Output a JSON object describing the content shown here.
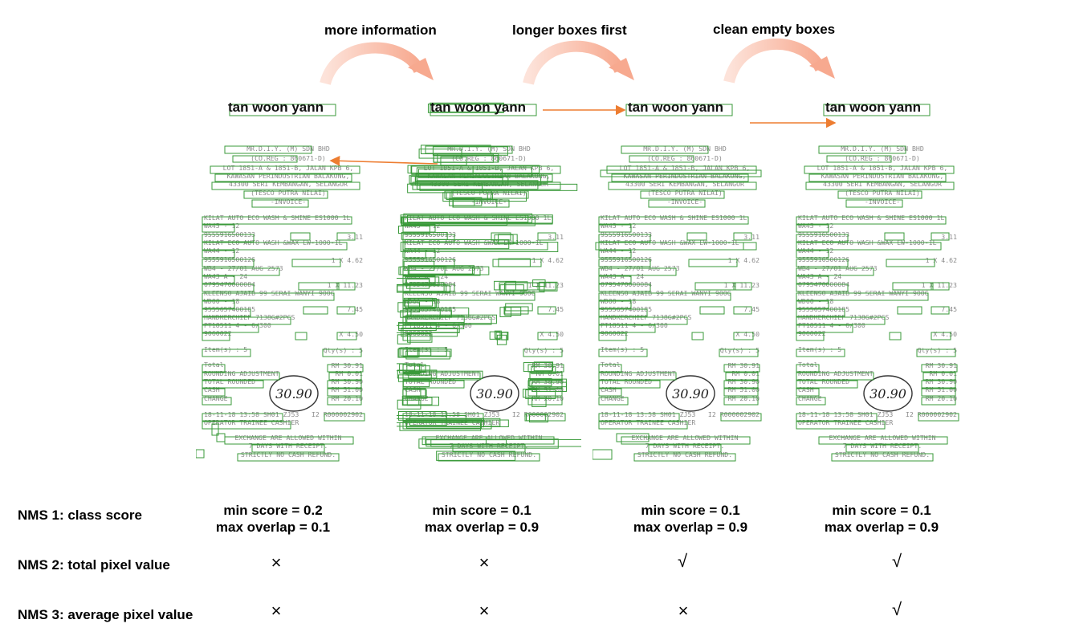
{
  "steps": [
    "more information",
    "longer boxes first",
    "clean empty boxes"
  ],
  "receipt_name": "tan woon yann",
  "receipt_lines": [
    "MR.D.I.Y. (M) SDN BHD",
    "(CO.REG : 860671-D)",
    "LOT 1851-A & 1851-B, JALAN KPB 6,",
    "KAWASAN PERINDUSTRIAN BALAKONG,",
    "43300 SERI KEMBANGAN, SELANGOR",
    "(TESCO PUTRA NILAI)",
    "-INVOICE-",
    "KILAT AUTO ECO WASH & SHINE ES1000 1L",
    "WA45 - 12",
    "9555916500133",
    "KILAT ECO AUTO WASH &WAX EW-1000-1L",
    "WA44 - 12",
    "9555916500126",
    "WB4 - 27/01 AUG 2573",
    "WA43 A - 24",
    "0795470000084",
    "KLEENSO AJAIB 99 SERAI WANYI 900G",
    "WD00 - 18",
    "9555657400185",
    "HANDKERCHIEF 7138G#2PCS",
    "PT18511 4 - 6/300",
    "9060022",
    "Item(s) : 5",
    "Total",
    "ROUNDING ADJUSTMENT",
    "TOTAL ROUNDED",
    "CASH",
    "CHANGE",
    "18-11-18 13:58 SH01 ZJ53",
    "OPERATOR TRAINEE CASHIER",
    "EXCHANGE ARE ALLOWED WITHIN",
    "7 DAYS WITH RECEIPT.",
    "STRICTLY NO CASH REFUND."
  ],
  "receipt_right": {
    "l1": "3.11",
    "l1v": "3.11",
    "l2": "1 X 4.62",
    "l2v": "4.62",
    "l3": "1 X 11.23",
    "l3v": "11.23",
    "l4": "7.45",
    "l4v": "7.45",
    "l5": "X 4.50",
    "l5v": "4.50",
    "qty": "Qty(s) : 5",
    "total": "RM 30.91",
    "rounding": "RM 0.01",
    "rounded": "RM 30.90",
    "cash": "RM 51.00",
    "change": "RM 20.10",
    "invoice": "I2 R000002902"
  },
  "handwritten_total": "30.90",
  "rows": [
    {
      "label": "NMS 1: class score"
    },
    {
      "label": "NMS 2: total pixel value"
    },
    {
      "label": "NMS 3: average pixel value"
    }
  ],
  "columns": [
    {
      "min_score": "min score = 0.2",
      "max_overlap": "max overlap = 0.1",
      "nms2": "×",
      "nms3": "×"
    },
    {
      "min_score": "min score = 0.1",
      "max_overlap": "max overlap = 0.9",
      "nms2": "×",
      "nms3": "×"
    },
    {
      "min_score": "min score = 0.1",
      "max_overlap": "max overlap = 0.9",
      "nms2": "√",
      "nms3": "×"
    },
    {
      "min_score": "min score = 0.1",
      "max_overlap": "max overlap = 0.9",
      "nms2": "√",
      "nms3": "√"
    }
  ],
  "colors": {
    "arc": "#f9b7a3",
    "arrow": "#ed7d31",
    "box": "#3a9a3a",
    "receipt_text": "#8a8a8a"
  }
}
